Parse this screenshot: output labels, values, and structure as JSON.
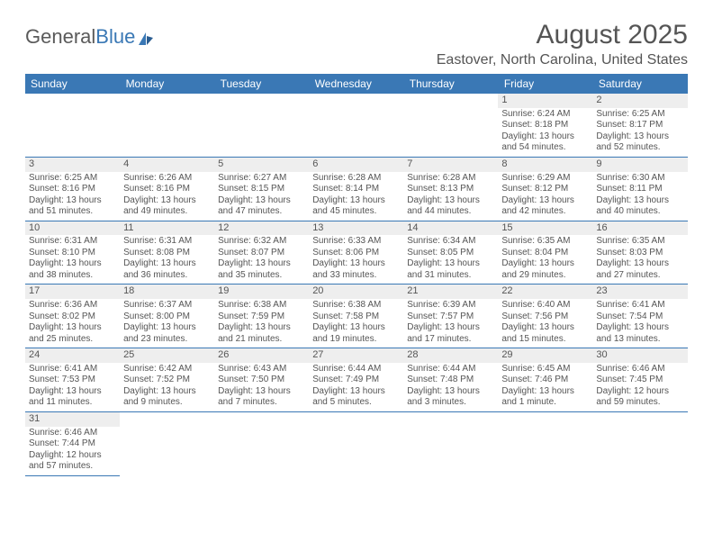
{
  "brand": {
    "part1": "General",
    "part2": "Blue"
  },
  "title": "August 2025",
  "location": "Eastover, North Carolina, United States",
  "colors": {
    "accent": "#3a78b5",
    "header_bg": "#3a78b5",
    "header_text": "#ffffff",
    "daynum_bg": "#eeeeee",
    "text": "#555555",
    "row_divider": "#3a78b5",
    "background": "#ffffff"
  },
  "typography": {
    "title_fontsize": 30,
    "location_fontsize": 16,
    "dayhead_fontsize": 12,
    "cell_fontsize": 10,
    "font_family": "Arial"
  },
  "day_headers": [
    "Sunday",
    "Monday",
    "Tuesday",
    "Wednesday",
    "Thursday",
    "Friday",
    "Saturday"
  ],
  "weeks": [
    [
      null,
      null,
      null,
      null,
      null,
      {
        "n": "1",
        "sr": "6:24 AM",
        "ss": "8:18 PM",
        "dl": "13 hours and 54 minutes."
      },
      {
        "n": "2",
        "sr": "6:25 AM",
        "ss": "8:17 PM",
        "dl": "13 hours and 52 minutes."
      }
    ],
    [
      {
        "n": "3",
        "sr": "6:25 AM",
        "ss": "8:16 PM",
        "dl": "13 hours and 51 minutes."
      },
      {
        "n": "4",
        "sr": "6:26 AM",
        "ss": "8:16 PM",
        "dl": "13 hours and 49 minutes."
      },
      {
        "n": "5",
        "sr": "6:27 AM",
        "ss": "8:15 PM",
        "dl": "13 hours and 47 minutes."
      },
      {
        "n": "6",
        "sr": "6:28 AM",
        "ss": "8:14 PM",
        "dl": "13 hours and 45 minutes."
      },
      {
        "n": "7",
        "sr": "6:28 AM",
        "ss": "8:13 PM",
        "dl": "13 hours and 44 minutes."
      },
      {
        "n": "8",
        "sr": "6:29 AM",
        "ss": "8:12 PM",
        "dl": "13 hours and 42 minutes."
      },
      {
        "n": "9",
        "sr": "6:30 AM",
        "ss": "8:11 PM",
        "dl": "13 hours and 40 minutes."
      }
    ],
    [
      {
        "n": "10",
        "sr": "6:31 AM",
        "ss": "8:10 PM",
        "dl": "13 hours and 38 minutes."
      },
      {
        "n": "11",
        "sr": "6:31 AM",
        "ss": "8:08 PM",
        "dl": "13 hours and 36 minutes."
      },
      {
        "n": "12",
        "sr": "6:32 AM",
        "ss": "8:07 PM",
        "dl": "13 hours and 35 minutes."
      },
      {
        "n": "13",
        "sr": "6:33 AM",
        "ss": "8:06 PM",
        "dl": "13 hours and 33 minutes."
      },
      {
        "n": "14",
        "sr": "6:34 AM",
        "ss": "8:05 PM",
        "dl": "13 hours and 31 minutes."
      },
      {
        "n": "15",
        "sr": "6:35 AM",
        "ss": "8:04 PM",
        "dl": "13 hours and 29 minutes."
      },
      {
        "n": "16",
        "sr": "6:35 AM",
        "ss": "8:03 PM",
        "dl": "13 hours and 27 minutes."
      }
    ],
    [
      {
        "n": "17",
        "sr": "6:36 AM",
        "ss": "8:02 PM",
        "dl": "13 hours and 25 minutes."
      },
      {
        "n": "18",
        "sr": "6:37 AM",
        "ss": "8:00 PM",
        "dl": "13 hours and 23 minutes."
      },
      {
        "n": "19",
        "sr": "6:38 AM",
        "ss": "7:59 PM",
        "dl": "13 hours and 21 minutes."
      },
      {
        "n": "20",
        "sr": "6:38 AM",
        "ss": "7:58 PM",
        "dl": "13 hours and 19 minutes."
      },
      {
        "n": "21",
        "sr": "6:39 AM",
        "ss": "7:57 PM",
        "dl": "13 hours and 17 minutes."
      },
      {
        "n": "22",
        "sr": "6:40 AM",
        "ss": "7:56 PM",
        "dl": "13 hours and 15 minutes."
      },
      {
        "n": "23",
        "sr": "6:41 AM",
        "ss": "7:54 PM",
        "dl": "13 hours and 13 minutes."
      }
    ],
    [
      {
        "n": "24",
        "sr": "6:41 AM",
        "ss": "7:53 PM",
        "dl": "13 hours and 11 minutes."
      },
      {
        "n": "25",
        "sr": "6:42 AM",
        "ss": "7:52 PM",
        "dl": "13 hours and 9 minutes."
      },
      {
        "n": "26",
        "sr": "6:43 AM",
        "ss": "7:50 PM",
        "dl": "13 hours and 7 minutes."
      },
      {
        "n": "27",
        "sr": "6:44 AM",
        "ss": "7:49 PM",
        "dl": "13 hours and 5 minutes."
      },
      {
        "n": "28",
        "sr": "6:44 AM",
        "ss": "7:48 PM",
        "dl": "13 hours and 3 minutes."
      },
      {
        "n": "29",
        "sr": "6:45 AM",
        "ss": "7:46 PM",
        "dl": "13 hours and 1 minute."
      },
      {
        "n": "30",
        "sr": "6:46 AM",
        "ss": "7:45 PM",
        "dl": "12 hours and 59 minutes."
      }
    ],
    [
      {
        "n": "31",
        "sr": "6:46 AM",
        "ss": "7:44 PM",
        "dl": "12 hours and 57 minutes."
      },
      null,
      null,
      null,
      null,
      null,
      null
    ]
  ],
  "labels": {
    "sunrise_prefix": "Sunrise: ",
    "sunset_prefix": "Sunset: ",
    "daylight_prefix": "Daylight: "
  }
}
